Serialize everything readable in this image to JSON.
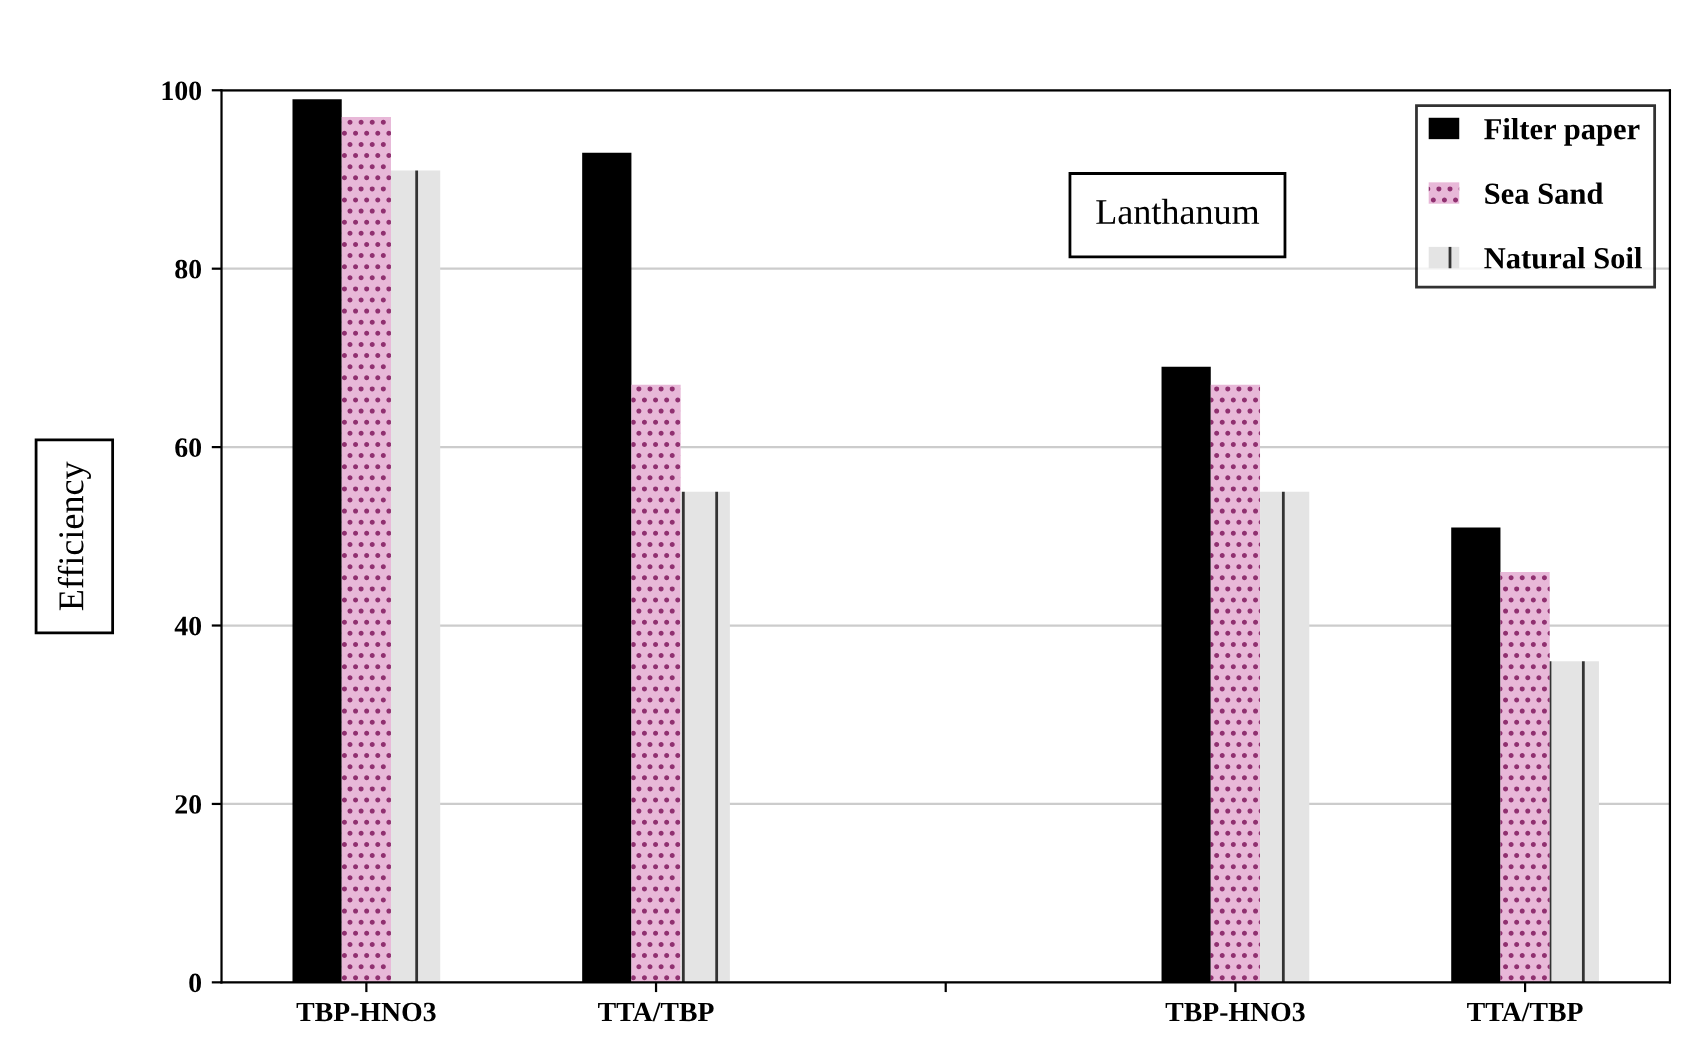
{
  "chart_data": {
    "type": "bar",
    "ylabel": "Efficiency",
    "categories": [
      "TBP-HNO3",
      "TTA/TBP",
      null,
      "TBP-HNO3",
      "TTA/TBP"
    ],
    "series": [
      {
        "name": "Filter paper",
        "color": "#000000",
        "values": [
          99,
          93,
          null,
          69,
          51
        ]
      },
      {
        "name": "Sea Sand",
        "color": "#e8b8d8",
        "values": [
          97,
          67,
          null,
          67,
          46
        ]
      },
      {
        "name": "Natural Soil",
        "color": "#e4e4e4",
        "values": [
          91,
          55,
          null,
          55,
          36
        ]
      }
    ],
    "ylim": [
      0,
      100
    ],
    "yticks": [
      0,
      20,
      40,
      60,
      80,
      100
    ],
    "grid": "y",
    "legend": "top right",
    "annotations": [
      "Lanthanum"
    ]
  }
}
